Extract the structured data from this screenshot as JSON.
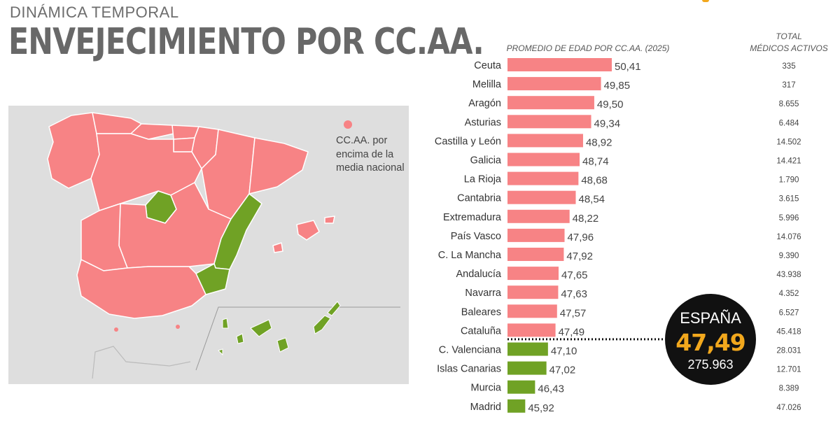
{
  "header": {
    "subtitle": "DINÁMICA TEMPORAL",
    "title": "ENVEJECIMIENTO POR CC.AA."
  },
  "map": {
    "legend_label": "CC.AA. por encima de la media nacional",
    "colors": {
      "above": "#f78385",
      "below": "#70a225",
      "background": "#dedede"
    }
  },
  "columns": {
    "average_header": "PROMEDIO DE EDAD POR CC.AA. (2025)",
    "doctors_header_1": "TOTAL",
    "doctors_header_2": "MÉDICOS ACTIVOS"
  },
  "national": {
    "label": "ESPAÑA",
    "value": "47,49",
    "doctors": "275.963"
  },
  "chart_data": {
    "type": "bar",
    "orientation": "horizontal",
    "title": "PROMEDIO DE EDAD POR CC.AA. (2025)",
    "categories": [
      "Ceuta",
      "Melilla",
      "Aragón",
      "Asturias",
      "Castilla y León",
      "Galicia",
      "La Rioja",
      "Cantabria",
      "Extremadura",
      "País Vasco",
      "C. La Mancha",
      "Andalucía",
      "Navarra",
      "Baleares",
      "Cataluña",
      "C. Valenciana",
      "Islas Canarias",
      "Murcia",
      "Madrid"
    ],
    "values": [
      50.41,
      49.85,
      49.5,
      49.34,
      48.92,
      48.74,
      48.68,
      48.54,
      48.22,
      47.96,
      47.92,
      47.65,
      47.63,
      47.57,
      47.49,
      47.1,
      47.02,
      46.43,
      45.92
    ],
    "value_labels": [
      "50,41",
      "49,85",
      "49,50",
      "49,34",
      "48,92",
      "48,74",
      "48,68",
      "48,54",
      "48,22",
      "47,96",
      "47,92",
      "47,65",
      "47,63",
      "47,57",
      "47,49",
      "47,10",
      "47,02",
      "46,43",
      "45,92"
    ],
    "doctors": [
      "335",
      "317",
      "8.655",
      "6.484",
      "14.502",
      "14.421",
      "1.790",
      "3.615",
      "5.996",
      "14.076",
      "9.390",
      "43.938",
      "4.352",
      "6.527",
      "45.418",
      "28.031",
      "12.701",
      "8.389",
      "47.026"
    ],
    "above_national": [
      true,
      true,
      true,
      true,
      true,
      true,
      true,
      true,
      true,
      true,
      true,
      true,
      true,
      true,
      true,
      false,
      false,
      false,
      false
    ],
    "reference_line": 47.49,
    "colors": {
      "above": "#f78385",
      "below": "#70a225"
    }
  }
}
